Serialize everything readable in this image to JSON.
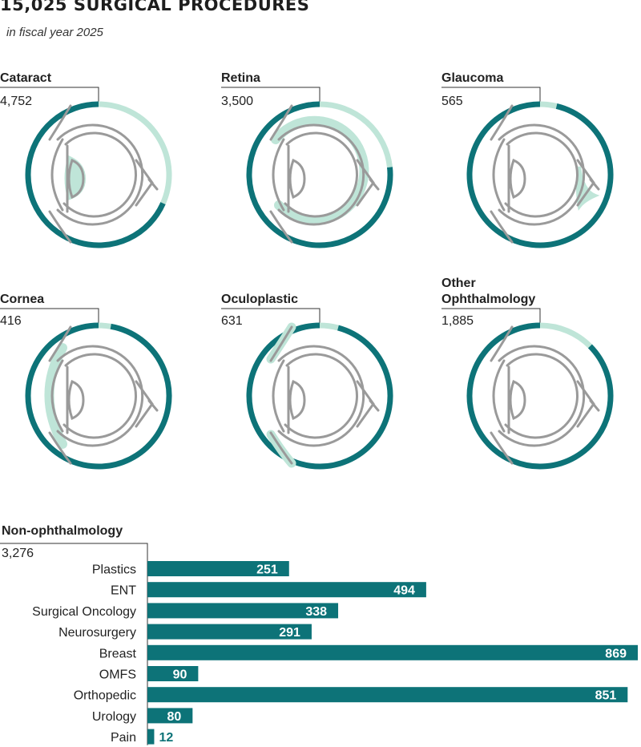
{
  "header": {
    "title": "15,025 SURGICAL PROCEDURES",
    "subtitle": "in fiscal year 2025"
  },
  "colors": {
    "teal": "#0d7378",
    "light_teal": "#bfe5d8",
    "eye_stroke": "#9a9a9a",
    "text": "#222222"
  },
  "chart_data": [
    {
      "type": "pie",
      "title": "",
      "total": 15025,
      "slices": [
        {
          "name": "Cataract",
          "label": "4,752",
          "value": 4752
        },
        {
          "name": "Retina",
          "label": "3,500",
          "value": 3500
        },
        {
          "name": "Glaucoma",
          "label": "565",
          "value": 565
        },
        {
          "name": "Cornea",
          "label": "416",
          "value": 416
        },
        {
          "name": "Oculoplastic",
          "label": "631",
          "value": 631
        },
        {
          "name": "Other Ophthalmology",
          "label": "1,885",
          "value": 1885
        }
      ]
    },
    {
      "type": "bar",
      "orientation": "horizontal",
      "title": "Non-ophthalmology",
      "total_label": "3,276",
      "categories": [
        "Plastics",
        "ENT",
        "Surgical Oncology",
        "Neurosurgery",
        "Breast",
        "OMFS",
        "Orthopedic",
        "Urology",
        "Pain"
      ],
      "values": [
        251,
        494,
        338,
        291,
        869,
        90,
        851,
        80,
        12
      ]
    }
  ],
  "non_ophthalmology": {
    "name": "Non-ophthalmology",
    "total": "3,276"
  }
}
